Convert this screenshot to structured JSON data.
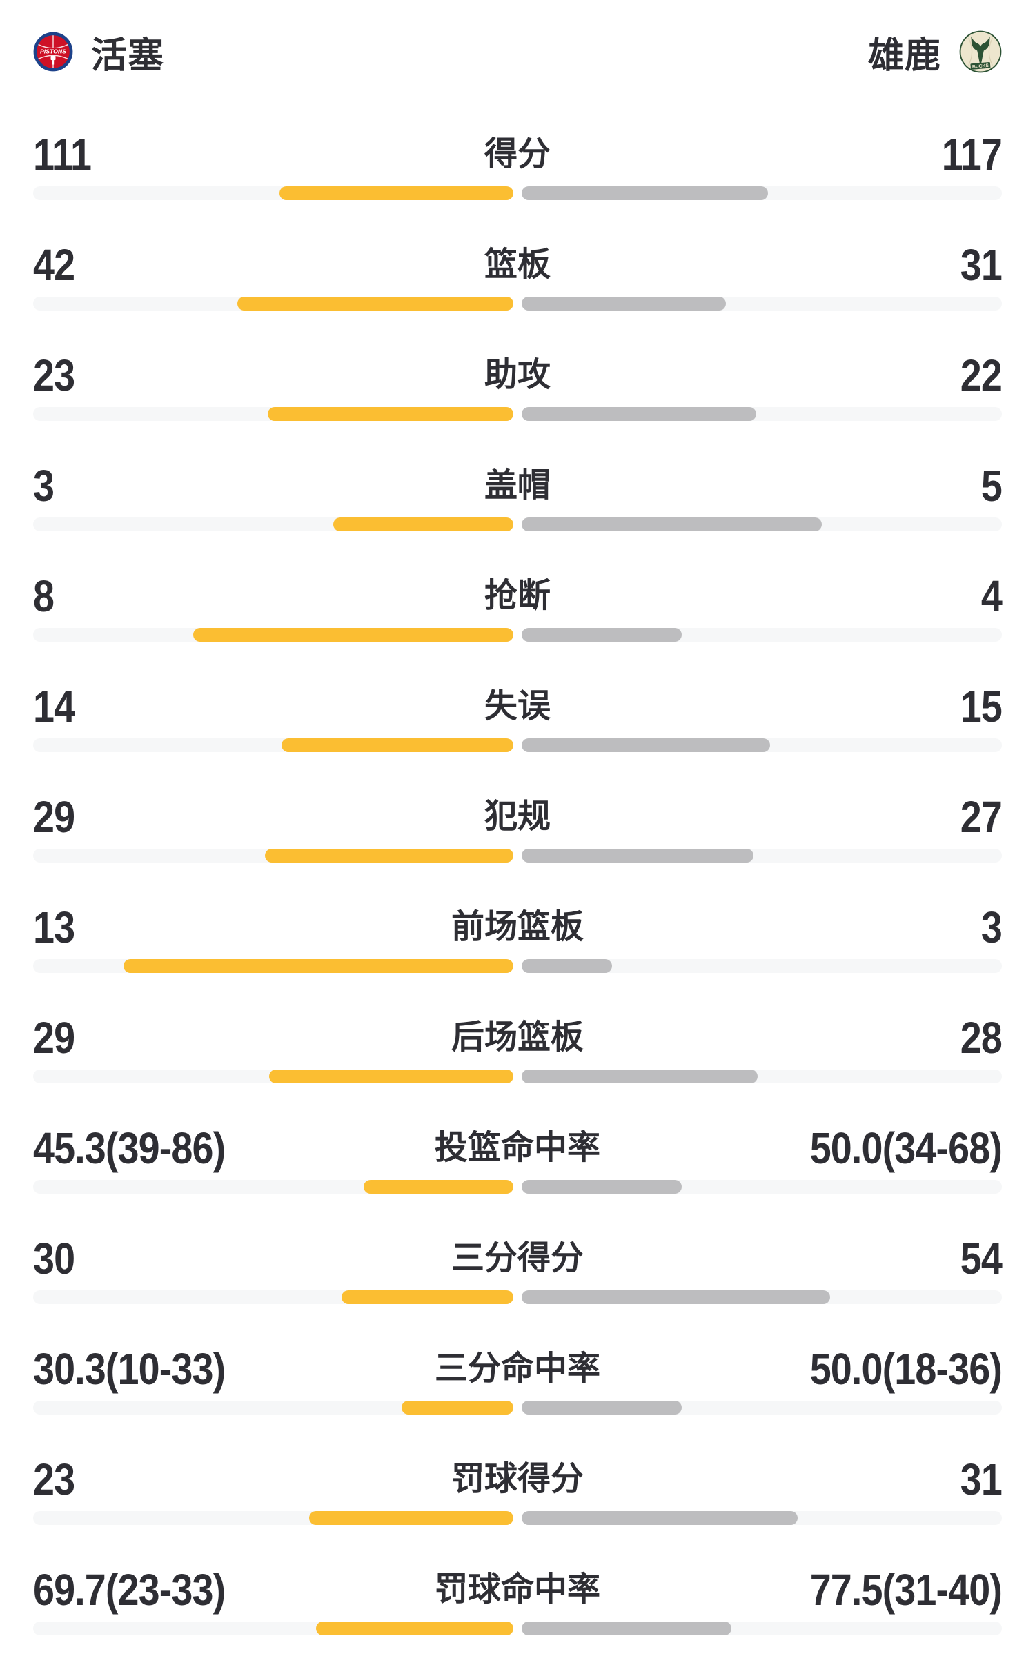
{
  "header": {
    "home_team": {
      "name": "活塞",
      "logo": "pistons"
    },
    "away_team": {
      "name": "雄鹿",
      "logo": "bucks"
    }
  },
  "colors": {
    "home_fill": "#FBBE32",
    "away_fill": "#BDBDBF",
    "track": "#F6F7F8",
    "text": "#2E2E34",
    "pistons_blue": "#1D428A",
    "pistons_red": "#CE1126",
    "bucks_green": "#2C5234",
    "bucks_cream": "#EDE6CE"
  },
  "chart_data": {
    "type": "bar",
    "orientation": "horizontal-paired-from-center",
    "title": "活塞 vs 雄鹿",
    "teams": [
      "活塞",
      "雄鹿"
    ],
    "legend_position": "header",
    "grid": false,
    "fill_rule": "count rows: width = value/(home+away) of half track; percent rows: width = value/(value+100) of half track",
    "categories": [
      "得分",
      "篮板",
      "助攻",
      "盖帽",
      "抢断",
      "失误",
      "犯规",
      "前场篮板",
      "后场篮板",
      "投篮命中率",
      "三分得分",
      "三分命中率",
      "罚球得分",
      "罚球命中率"
    ],
    "series": [
      {
        "name": "活塞",
        "color": "#FBBE32",
        "values": [
          111,
          42,
          23,
          3,
          8,
          14,
          29,
          13,
          29,
          45.3,
          30,
          30.3,
          23,
          69.7
        ]
      },
      {
        "name": "雄鹿",
        "color": "#BDBDBF",
        "values": [
          117,
          31,
          22,
          5,
          4,
          15,
          27,
          3,
          28,
          50.0,
          54,
          50.0,
          31,
          77.5
        ]
      }
    ],
    "rows": [
      {
        "label": "得分",
        "kind": "count",
        "home": {
          "display": "111",
          "value": 111
        },
        "away": {
          "display": "117",
          "value": 117
        }
      },
      {
        "label": "篮板",
        "kind": "count",
        "home": {
          "display": "42",
          "value": 42
        },
        "away": {
          "display": "31",
          "value": 31
        }
      },
      {
        "label": "助攻",
        "kind": "count",
        "home": {
          "display": "23",
          "value": 23
        },
        "away": {
          "display": "22",
          "value": 22
        }
      },
      {
        "label": "盖帽",
        "kind": "count",
        "home": {
          "display": "3",
          "value": 3
        },
        "away": {
          "display": "5",
          "value": 5
        }
      },
      {
        "label": "抢断",
        "kind": "count",
        "home": {
          "display": "8",
          "value": 8
        },
        "away": {
          "display": "4",
          "value": 4
        }
      },
      {
        "label": "失误",
        "kind": "count",
        "home": {
          "display": "14",
          "value": 14
        },
        "away": {
          "display": "15",
          "value": 15
        }
      },
      {
        "label": "犯规",
        "kind": "count",
        "home": {
          "display": "29",
          "value": 29
        },
        "away": {
          "display": "27",
          "value": 27
        }
      },
      {
        "label": "前场篮板",
        "kind": "count",
        "home": {
          "display": "13",
          "value": 13
        },
        "away": {
          "display": "3",
          "value": 3
        }
      },
      {
        "label": "后场篮板",
        "kind": "count",
        "home": {
          "display": "29",
          "value": 29
        },
        "away": {
          "display": "28",
          "value": 28
        }
      },
      {
        "label": "投篮命中率",
        "kind": "percent",
        "home": {
          "display": "45.3(39-86)",
          "value": 45.3
        },
        "away": {
          "display": "50.0(34-68)",
          "value": 50.0
        }
      },
      {
        "label": "三分得分",
        "kind": "count",
        "home": {
          "display": "30",
          "value": 30
        },
        "away": {
          "display": "54",
          "value": 54
        }
      },
      {
        "label": "三分命中率",
        "kind": "percent",
        "home": {
          "display": "30.3(10-33)",
          "value": 30.3
        },
        "away": {
          "display": "50.0(18-36)",
          "value": 50.0
        }
      },
      {
        "label": "罚球得分",
        "kind": "count",
        "home": {
          "display": "23",
          "value": 23
        },
        "away": {
          "display": "31",
          "value": 31
        }
      },
      {
        "label": "罚球命中率",
        "kind": "percent",
        "home": {
          "display": "69.7(23-33)",
          "value": 69.7
        },
        "away": {
          "display": "77.5(31-40)",
          "value": 77.5
        }
      }
    ]
  }
}
